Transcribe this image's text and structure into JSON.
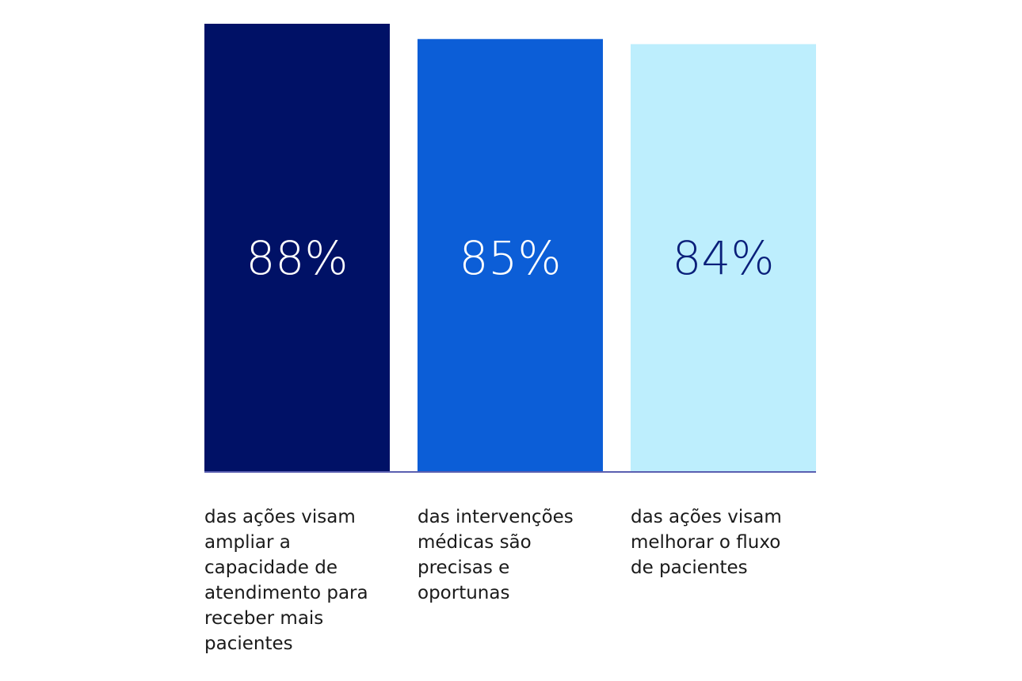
{
  "chart_data": {
    "type": "bar",
    "categories": [
      "das ações visam\nampliar a\ncapacidade de\natendimento para\nreceber mais\npacientes",
      "das intervenções\nmédicas são\nprecisas e\noportunas",
      "das ações visam\nmelhorar o fluxo\nde pacientes"
    ],
    "values": [
      88,
      85,
      84
    ],
    "value_labels": [
      "88%",
      "85%",
      "84%"
    ],
    "bar_colors": [
      "#001166",
      "#0c5ed7",
      "#bdeefd"
    ],
    "value_label_colors": [
      "#ffffff",
      "#ffffff",
      "#0a1f7a"
    ],
    "baseline_color": "#5a5fb0",
    "ylim": [
      0,
      88
    ],
    "grid": false,
    "legend": "none",
    "title": "",
    "xlabel": "",
    "ylabel": ""
  }
}
